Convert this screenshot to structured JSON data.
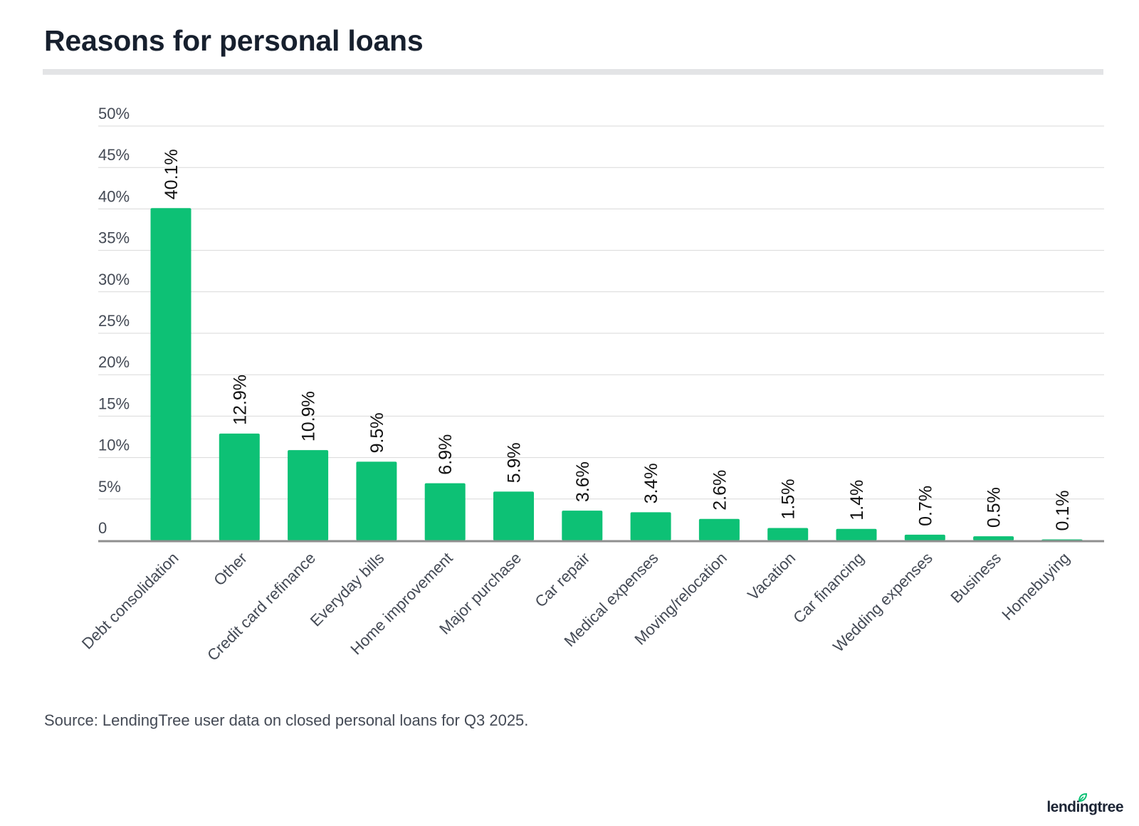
{
  "title": "Reasons for personal loans",
  "source": "Source: LendingTree user data on closed personal loans for Q3 2025.",
  "logo_text": "lendingtree",
  "colors": {
    "bar": "#0dc175",
    "grid": "#d9d9d9",
    "axis": "#8f8f8f",
    "text": "#1c2434",
    "tick": "#444a55"
  },
  "chart_data": {
    "type": "bar",
    "categories": [
      "Debt consolidation",
      "Other",
      "Credit card refinance",
      "Everyday bills",
      "Home improvement",
      "Major purchase",
      "Car repair",
      "Medical expenses",
      "Moving/relocation",
      "Vacation",
      "Car financing",
      "Wedding expenses",
      "Business",
      "Homebuying"
    ],
    "values": [
      40.1,
      12.9,
      10.9,
      9.5,
      6.9,
      5.9,
      3.6,
      3.4,
      2.6,
      1.5,
      1.4,
      0.7,
      0.5,
      0.1
    ],
    "value_labels": [
      "40.1%",
      "12.9%",
      "10.9%",
      "9.5%",
      "6.9%",
      "5.9%",
      "3.6%",
      "3.4%",
      "2.6%",
      "1.5%",
      "1.4%",
      "0.7%",
      "0.5%",
      "0.1%"
    ],
    "y_ticks": [
      0,
      5,
      10,
      15,
      20,
      25,
      30,
      35,
      40,
      45,
      50
    ],
    "y_tick_labels": [
      "0",
      "5%",
      "10%",
      "15%",
      "20%",
      "25%",
      "30%",
      "35%",
      "40%",
      "45%",
      "50%"
    ],
    "ylim": [
      0,
      50
    ],
    "grid": true,
    "legend": "none",
    "xlabel": "",
    "ylabel": ""
  }
}
